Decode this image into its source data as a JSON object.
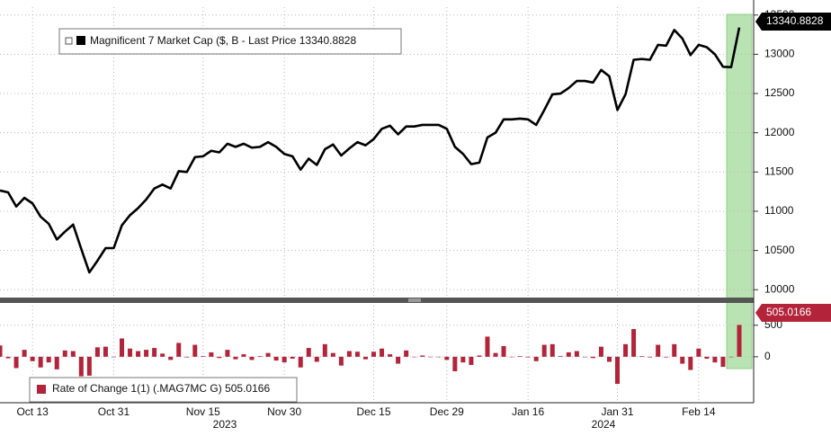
{
  "chart_data": [
    {
      "type": "line",
      "legend": "Magnificent 7 Market Cap ($, B - Last Price 13340.8828",
      "last_label": "13340.8828",
      "color": "#000000",
      "values": [
        11264,
        11240,
        11060,
        11170,
        11100,
        10930,
        10840,
        10640,
        10740,
        10830,
        10520,
        10220,
        10370,
        10530,
        10530,
        10820,
        10950,
        11040,
        11150,
        11290,
        11340,
        11290,
        11510,
        11500,
        11690,
        11700,
        11770,
        11750,
        11860,
        11820,
        11860,
        11810,
        11820,
        11880,
        11820,
        11730,
        11700,
        11530,
        11670,
        11590,
        11790,
        11850,
        11710,
        11800,
        11880,
        11840,
        11920,
        12050,
        12090,
        11980,
        12080,
        12080,
        12100,
        12100,
        12100,
        12050,
        11820,
        11730,
        11600,
        11620,
        11940,
        12000,
        12170,
        12170,
        12180,
        12170,
        12100,
        12290,
        12490,
        12500,
        12570,
        12660,
        12660,
        12640,
        12800,
        12720,
        12290,
        12490,
        12930,
        12940,
        12930,
        13120,
        13110,
        13310,
        13200,
        12990,
        13120,
        13090,
        13000,
        12840,
        12835.88,
        13340.8828
      ],
      "ylim": [
        9900,
        13600
      ],
      "yticks": [
        10000,
        10500,
        11000,
        11500,
        12000,
        12500,
        13000,
        13500
      ],
      "grid": true,
      "highlight_color": "#b9e3b2"
    },
    {
      "type": "bar",
      "legend": "Rate of Change 1(1) (.MAG7MC G) 505.0166",
      "last_label": "505.0166",
      "color": "#b3243a",
      "categories": [
        null,
        null,
        null,
        null,
        "Oct 13",
        null,
        null,
        null,
        null,
        null,
        null,
        null,
        null,
        null,
        "Oct 31",
        null,
        null,
        null,
        null,
        null,
        null,
        null,
        null,
        null,
        null,
        "Nov 15",
        null,
        null,
        null,
        null,
        null,
        null,
        null,
        null,
        null,
        "Nov 30",
        null,
        null,
        null,
        null,
        null,
        null,
        null,
        null,
        null,
        null,
        "Dec 15",
        null,
        null,
        null,
        null,
        null,
        null,
        null,
        null,
        "Dec 29",
        null,
        null,
        null,
        null,
        null,
        null,
        null,
        null,
        null,
        "Jan 16",
        null,
        null,
        null,
        null,
        null,
        null,
        null,
        null,
        null,
        null,
        "Jan 31",
        null,
        null,
        null,
        null,
        null,
        null,
        null,
        null,
        null,
        "Feb 14",
        null,
        null,
        null,
        null,
        null
      ],
      "years": [
        "2023",
        "2024"
      ],
      "values": [
        180,
        -24,
        -180,
        110,
        -70,
        -170,
        -90,
        -200,
        100,
        90,
        -310,
        -300,
        150,
        160,
        0,
        290,
        130,
        90,
        110,
        140,
        50,
        -50,
        220,
        -10,
        190,
        10,
        70,
        -20,
        110,
        -40,
        40,
        -50,
        10,
        60,
        -60,
        -90,
        -30,
        -170,
        140,
        -80,
        200,
        60,
        -140,
        90,
        80,
        -40,
        80,
        130,
        40,
        -110,
        100,
        0,
        20,
        0,
        0,
        -50,
        -230,
        -90,
        -130,
        20,
        320,
        60,
        170,
        0,
        10,
        -10,
        -70,
        190,
        200,
        10,
        70,
        90,
        0,
        -20,
        160,
        -80,
        -430,
        200,
        440,
        10,
        -10,
        190,
        -10,
        200,
        -110,
        -210,
        130,
        -30,
        -90,
        -160,
        -4.12,
        505.0166
      ],
      "ylim": [
        -730,
        840
      ],
      "yticks": [
        0,
        500
      ],
      "grid": true
    }
  ]
}
